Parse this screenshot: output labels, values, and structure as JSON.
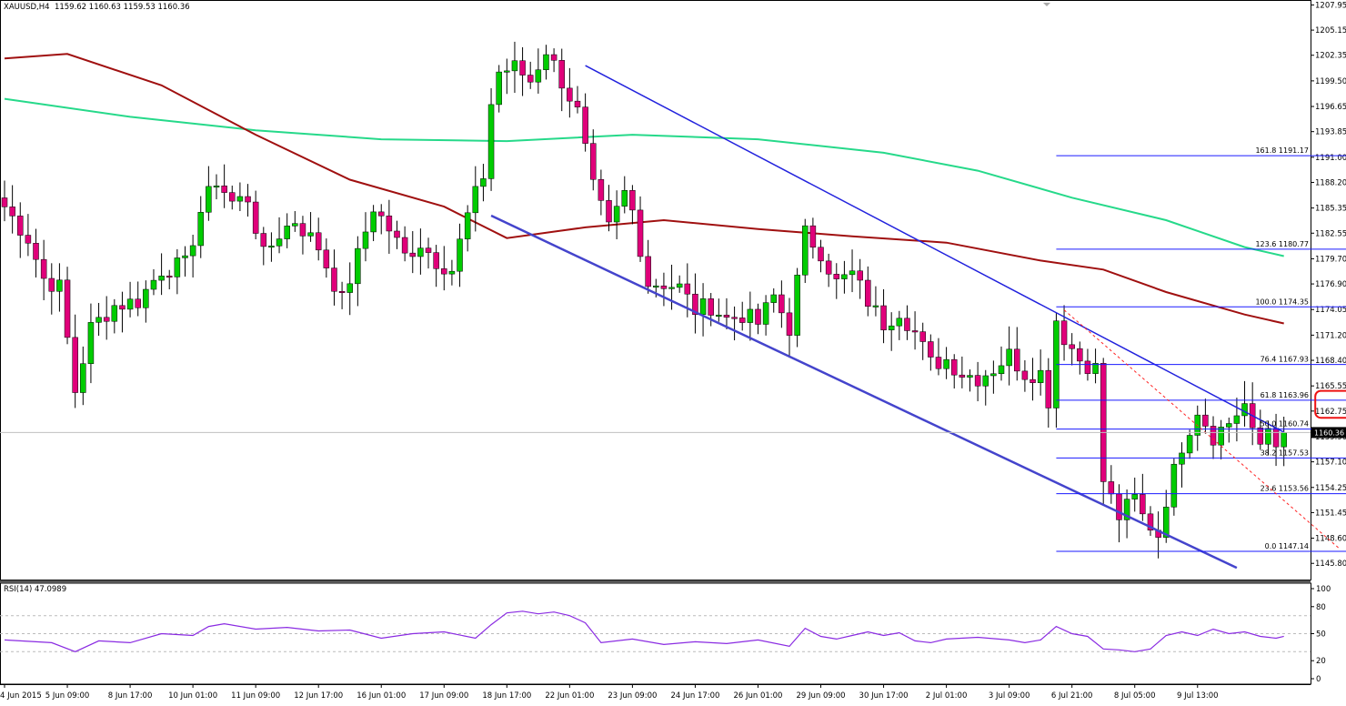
{
  "header": {
    "symbol": "XAUUSD,H4",
    "ohlc": "1159.62 1160.63 1159.53 1160.36"
  },
  "rsi_header": "RSI(14) 47.0989",
  "current_price_label": "1160.36",
  "colors": {
    "bull": "#00cc00",
    "bear": "#e0007a",
    "wick": "#000000",
    "ma_fast": "#a01010",
    "ma_slow": "#26d98a",
    "channel": "#2222dd",
    "channel_lower": "#4444cc",
    "fib": "#1a1aff",
    "fib_dotted": "#ff2222",
    "highlight_box": "#ee1111",
    "rsi_line": "#8a2be2"
  },
  "chart_data": {
    "type": "candlestick",
    "symbol": "XAUUSD",
    "timeframe": "H4",
    "ylim": [
      1144.0,
      1208.5
    ],
    "y_ticks": [
      1207.95,
      1205.15,
      1202.35,
      1199.5,
      1196.65,
      1193.85,
      1191.0,
      1188.2,
      1185.35,
      1182.55,
      1179.7,
      1176.9,
      1174.05,
      1171.2,
      1168.4,
      1165.55,
      1162.75,
      1159.9,
      1157.1,
      1154.25,
      1151.45,
      1148.6,
      1145.8
    ],
    "x_tick_labels": [
      {
        "bar": 0,
        "label": "4 Jun 2015"
      },
      {
        "bar": 8,
        "label": "5 Jun 09:00"
      },
      {
        "bar": 16,
        "label": "8 Jun 17:00"
      },
      {
        "bar": 24,
        "label": "10 Jun 01:00"
      },
      {
        "bar": 32,
        "label": "11 Jun 09:00"
      },
      {
        "bar": 40,
        "label": "12 Jun 17:00"
      },
      {
        "bar": 48,
        "label": "16 Jun 01:00"
      },
      {
        "bar": 56,
        "label": "17 Jun 09:00"
      },
      {
        "bar": 64,
        "label": "18 Jun 17:00"
      },
      {
        "bar": 72,
        "label": "22 Jun 01:00"
      },
      {
        "bar": 80,
        "label": "23 Jun 09:00"
      },
      {
        "bar": 88,
        "label": "24 Jun 17:00"
      },
      {
        "bar": 96,
        "label": "26 Jun 01:00"
      },
      {
        "bar": 104,
        "label": "29 Jun 09:00"
      },
      {
        "bar": 112,
        "label": "30 Jun 17:00"
      },
      {
        "bar": 120,
        "label": "2 Jul 01:00"
      },
      {
        "bar": 128,
        "label": "3 Jul 09:00"
      },
      {
        "bar": 136,
        "label": "6 Jul 21:00"
      },
      {
        "bar": 144,
        "label": "8 Jul 05:00"
      },
      {
        "bar": 152,
        "label": "9 Jul 13:00"
      }
    ],
    "close_anchors": [
      [
        0,
        1185.5
      ],
      [
        3,
        1182.0
      ],
      [
        5,
        1177.5
      ],
      [
        7,
        1176.5
      ],
      [
        9,
        1165.0
      ],
      [
        11,
        1172.0
      ],
      [
        14,
        1174.5
      ],
      [
        17,
        1175.0
      ],
      [
        20,
        1178.5
      ],
      [
        23,
        1179.0
      ],
      [
        25,
        1185.0
      ],
      [
        27,
        1188.5
      ],
      [
        29,
        1186.0
      ],
      [
        31,
        1186.5
      ],
      [
        33,
        1180.0
      ],
      [
        35,
        1182.5
      ],
      [
        37,
        1184.0
      ],
      [
        40,
        1181.0
      ],
      [
        43,
        1175.0
      ],
      [
        45,
        1180.0
      ],
      [
        47,
        1185.5
      ],
      [
        49,
        1183.0
      ],
      [
        51,
        1180.0
      ],
      [
        53,
        1181.5
      ],
      [
        55,
        1179.5
      ],
      [
        57,
        1178.5
      ],
      [
        59,
        1184.5
      ],
      [
        61,
        1189.0
      ],
      [
        62,
        1197.0
      ],
      [
        63,
        1200.5
      ],
      [
        65,
        1201.0
      ],
      [
        67,
        1199.5
      ],
      [
        69,
        1203.0
      ],
      [
        71,
        1199.5
      ],
      [
        73,
        1196.0
      ],
      [
        75,
        1187.5
      ],
      [
        77,
        1183.0
      ],
      [
        79,
        1187.0
      ],
      [
        80,
        1185.0
      ],
      [
        82,
        1177.0
      ],
      [
        84,
        1177.0
      ],
      [
        86,
        1176.5
      ],
      [
        88,
        1174.0
      ],
      [
        90,
        1174.5
      ],
      [
        92,
        1173.0
      ],
      [
        94,
        1173.5
      ],
      [
        96,
        1172.5
      ],
      [
        98,
        1175.5
      ],
      [
        100,
        1172.0
      ],
      [
        102,
        1182.5
      ],
      [
        104,
        1180.5
      ],
      [
        106,
        1177.0
      ],
      [
        108,
        1178.0
      ],
      [
        110,
        1175.0
      ],
      [
        112,
        1172.5
      ],
      [
        114,
        1174.0
      ],
      [
        116,
        1171.5
      ],
      [
        118,
        1168.0
      ],
      [
        120,
        1168.5
      ],
      [
        122,
        1167.0
      ],
      [
        124,
        1166.5
      ],
      [
        126,
        1167.5
      ],
      [
        128,
        1169.0
      ],
      [
        130,
        1167.0
      ],
      [
        132,
        1167.0
      ],
      [
        133,
        1164.0
      ],
      [
        134,
        1173.0
      ],
      [
        135,
        1171.0
      ],
      [
        137,
        1168.5
      ],
      [
        139,
        1167.5
      ],
      [
        140,
        1155.0
      ],
      [
        142,
        1151.0
      ],
      [
        144,
        1153.0
      ],
      [
        145,
        1151.0
      ],
      [
        146,
        1150.0
      ],
      [
        147,
        1149.0
      ],
      [
        148,
        1153.0
      ],
      [
        150,
        1159.0
      ],
      [
        152,
        1163.0
      ],
      [
        154,
        1160.0
      ],
      [
        156,
        1161.5
      ],
      [
        158,
        1163.5
      ],
      [
        159,
        1160.0
      ],
      [
        160,
        1159.0
      ],
      [
        161,
        1161.0
      ],
      [
        162,
        1159.6
      ],
      [
        163,
        1160.36
      ]
    ],
    "ma_fast": {
      "name": "",
      "values": [
        [
          0,
          1202.0
        ],
        [
          8,
          1202.5
        ],
        [
          20,
          1199.0
        ],
        [
          32,
          1193.5
        ],
        [
          44,
          1188.5
        ],
        [
          56,
          1185.5
        ],
        [
          64,
          1182.0
        ],
        [
          74,
          1183.2
        ],
        [
          84,
          1184.0
        ],
        [
          96,
          1183.0
        ],
        [
          108,
          1182.2
        ],
        [
          120,
          1181.5
        ],
        [
          132,
          1179.5
        ],
        [
          140,
          1178.5
        ],
        [
          148,
          1176.0
        ],
        [
          158,
          1173.5
        ],
        [
          163,
          1172.5
        ]
      ]
    },
    "ma_slow": {
      "name": "",
      "values": [
        [
          0,
          1197.5
        ],
        [
          16,
          1195.5
        ],
        [
          32,
          1194.0
        ],
        [
          48,
          1193.0
        ],
        [
          64,
          1192.8
        ],
        [
          80,
          1193.5
        ],
        [
          96,
          1193.0
        ],
        [
          112,
          1191.5
        ],
        [
          124,
          1189.5
        ],
        [
          136,
          1186.5
        ],
        [
          148,
          1184.0
        ],
        [
          158,
          1181.0
        ],
        [
          163,
          1180.0
        ]
      ]
    },
    "channel_upper": [
      [
        74,
        1201.2
      ],
      [
        163,
        1160.4
      ]
    ],
    "channel_lower": [
      [
        62,
        1184.5
      ],
      [
        157,
        1145.3
      ]
    ],
    "fib_levels": [
      {
        "ratio": "161.8",
        "price": 1191.17
      },
      {
        "ratio": "123.6",
        "price": 1180.77
      },
      {
        "ratio": "100.0",
        "price": 1174.35
      },
      {
        "ratio": "76.4",
        "price": 1167.93
      },
      {
        "ratio": "61.8",
        "price": 1163.96
      },
      {
        "ratio": "50.0",
        "price": 1160.74
      },
      {
        "ratio": "38.2",
        "price": 1157.53
      },
      {
        "ratio": "23.6",
        "price": 1153.56
      },
      {
        "ratio": "0.0",
        "price": 1147.14
      }
    ],
    "fib_range": [
      134,
      170
    ],
    "fib_dotted_line": [
      [
        135,
        1174.0
      ],
      [
        170,
        1147.5
      ]
    ],
    "highlight_box": {
      "price_top": 1165.0,
      "price_bottom": 1162.0,
      "bar_left": 167,
      "bar_right": 175
    },
    "rsi": {
      "ylim": [
        0,
        100
      ],
      "y_ticks": [
        100,
        80,
        50,
        20,
        0
      ],
      "levels": [
        70,
        30
      ],
      "values": [
        [
          0,
          43
        ],
        [
          6,
          40
        ],
        [
          9,
          30
        ],
        [
          12,
          42
        ],
        [
          16,
          40
        ],
        [
          20,
          50
        ],
        [
          24,
          48
        ],
        [
          26,
          58
        ],
        [
          28,
          61
        ],
        [
          32,
          55
        ],
        [
          36,
          57
        ],
        [
          40,
          53
        ],
        [
          44,
          54
        ],
        [
          48,
          45
        ],
        [
          52,
          50
        ],
        [
          56,
          52
        ],
        [
          60,
          45
        ],
        [
          62,
          60
        ],
        [
          64,
          73
        ],
        [
          66,
          75
        ],
        [
          68,
          72
        ],
        [
          70,
          74
        ],
        [
          72,
          70
        ],
        [
          74,
          62
        ],
        [
          76,
          40
        ],
        [
          80,
          44
        ],
        [
          84,
          38
        ],
        [
          88,
          41
        ],
        [
          92,
          39
        ],
        [
          96,
          43
        ],
        [
          100,
          36
        ],
        [
          102,
          56
        ],
        [
          104,
          47
        ],
        [
          106,
          44
        ],
        [
          108,
          48
        ],
        [
          110,
          52
        ],
        [
          112,
          48
        ],
        [
          114,
          51
        ],
        [
          116,
          42
        ],
        [
          118,
          40
        ],
        [
          120,
          44
        ],
        [
          124,
          46
        ],
        [
          128,
          43
        ],
        [
          130,
          40
        ],
        [
          132,
          43
        ],
        [
          134,
          58
        ],
        [
          136,
          50
        ],
        [
          138,
          47
        ],
        [
          140,
          33
        ],
        [
          142,
          32
        ],
        [
          144,
          30
        ],
        [
          146,
          33
        ],
        [
          148,
          48
        ],
        [
          150,
          52
        ],
        [
          152,
          48
        ],
        [
          154,
          55
        ],
        [
          156,
          50
        ],
        [
          158,
          52
        ],
        [
          160,
          47
        ],
        [
          162,
          45
        ],
        [
          163,
          47.1
        ]
      ]
    }
  }
}
